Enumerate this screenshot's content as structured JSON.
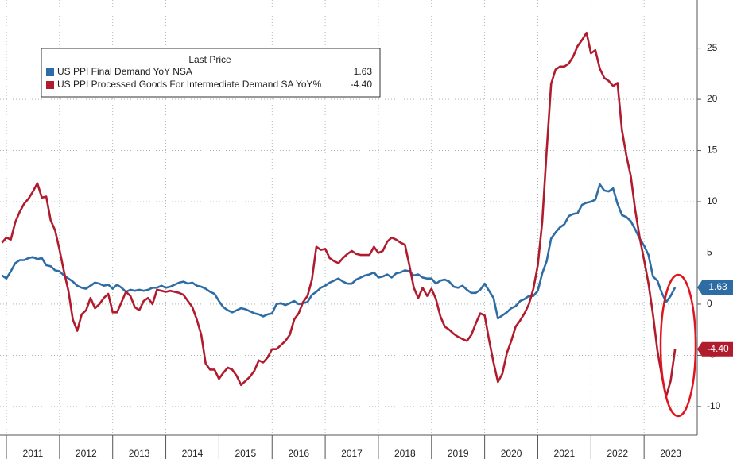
{
  "chart_data": {
    "type": "line",
    "legend_title": "Last Price",
    "xlim": [
      2010.88,
      2024.0
    ],
    "xticks": [
      2011,
      2012,
      2013,
      2014,
      2015,
      2016,
      2017,
      2018,
      2019,
      2020,
      2021,
      2022,
      2023
    ],
    "ylim": [
      -12.8,
      29.7
    ],
    "yticks": [
      -10,
      -5,
      0,
      5,
      10,
      15,
      20,
      25
    ],
    "grid": true,
    "x": [
      2010.917,
      2011.0,
      2011.083,
      2011.167,
      2011.25,
      2011.333,
      2011.417,
      2011.5,
      2011.583,
      2011.667,
      2011.75,
      2011.833,
      2011.917,
      2012.0,
      2012.083,
      2012.167,
      2012.25,
      2012.333,
      2012.417,
      2012.5,
      2012.583,
      2012.667,
      2012.75,
      2012.833,
      2012.917,
      2013.0,
      2013.083,
      2013.167,
      2013.25,
      2013.333,
      2013.417,
      2013.5,
      2013.583,
      2013.667,
      2013.75,
      2013.833,
      2013.917,
      2014.0,
      2014.083,
      2014.167,
      2014.25,
      2014.333,
      2014.417,
      2014.5,
      2014.583,
      2014.667,
      2014.75,
      2014.833,
      2014.917,
      2015.0,
      2015.083,
      2015.167,
      2015.25,
      2015.333,
      2015.417,
      2015.5,
      2015.583,
      2015.667,
      2015.75,
      2015.833,
      2015.917,
      2016.0,
      2016.083,
      2016.167,
      2016.25,
      2016.333,
      2016.417,
      2016.5,
      2016.583,
      2016.667,
      2016.75,
      2016.833,
      2016.917,
      2017.0,
      2017.083,
      2017.167,
      2017.25,
      2017.333,
      2017.417,
      2017.5,
      2017.583,
      2017.667,
      2017.75,
      2017.833,
      2017.917,
      2018.0,
      2018.083,
      2018.167,
      2018.25,
      2018.333,
      2018.417,
      2018.5,
      2018.583,
      2018.667,
      2018.75,
      2018.833,
      2018.917,
      2019.0,
      2019.083,
      2019.167,
      2019.25,
      2019.333,
      2019.417,
      2019.5,
      2019.583,
      2019.667,
      2019.75,
      2019.833,
      2019.917,
      2020.0,
      2020.083,
      2020.167,
      2020.25,
      2020.333,
      2020.417,
      2020.5,
      2020.583,
      2020.667,
      2020.75,
      2020.833,
      2020.917,
      2021.0,
      2021.083,
      2021.167,
      2021.25,
      2021.333,
      2021.417,
      2021.5,
      2021.583,
      2021.667,
      2021.75,
      2021.833,
      2021.917,
      2022.0,
      2022.083,
      2022.167,
      2022.25,
      2022.333,
      2022.417,
      2022.5,
      2022.583,
      2022.667,
      2022.75,
      2022.833,
      2022.917,
      2023.0,
      2023.083,
      2023.167,
      2023.25,
      2023.333,
      2023.417,
      2023.5,
      2023.583
    ],
    "series": [
      {
        "name": "US PPI Final Demand YoY NSA",
        "color": "#2e6ca4",
        "last_label": "1.63",
        "values": [
          2.8,
          2.5,
          3.2,
          4.0,
          4.3,
          4.3,
          4.5,
          4.6,
          4.4,
          4.5,
          3.8,
          3.7,
          3.3,
          3.2,
          2.8,
          2.5,
          2.2,
          1.8,
          1.6,
          1.5,
          1.8,
          2.1,
          2.0,
          1.8,
          1.9,
          1.5,
          1.9,
          1.6,
          1.2,
          1.4,
          1.3,
          1.4,
          1.3,
          1.4,
          1.6,
          1.6,
          1.8,
          1.6,
          1.7,
          1.9,
          2.1,
          2.2,
          2.0,
          2.1,
          1.8,
          1.7,
          1.5,
          1.2,
          1.0,
          0.3,
          -0.3,
          -0.6,
          -0.8,
          -0.6,
          -0.4,
          -0.5,
          -0.7,
          -0.9,
          -1.0,
          -1.2,
          -1.0,
          -0.9,
          0.0,
          0.1,
          -0.1,
          0.1,
          0.3,
          0.0,
          0.1,
          0.2,
          0.9,
          1.2,
          1.6,
          1.8,
          2.1,
          2.3,
          2.5,
          2.2,
          2.0,
          2.0,
          2.4,
          2.6,
          2.8,
          2.9,
          3.1,
          2.6,
          2.7,
          2.9,
          2.6,
          3.0,
          3.1,
          3.3,
          3.2,
          2.8,
          2.9,
          2.6,
          2.5,
          2.5,
          2.0,
          2.3,
          2.4,
          2.2,
          1.7,
          1.6,
          1.8,
          1.4,
          1.1,
          1.1,
          1.4,
          2.0,
          1.3,
          0.6,
          -1.4,
          -1.1,
          -0.8,
          -0.4,
          -0.2,
          0.3,
          0.5,
          0.8,
          0.8,
          1.3,
          3.0,
          4.2,
          6.4,
          7.0,
          7.5,
          7.8,
          8.6,
          8.8,
          8.9,
          9.7,
          9.9,
          10.0,
          10.2,
          11.7,
          11.1,
          11.0,
          11.3,
          9.8,
          8.7,
          8.5,
          8.1,
          7.3,
          6.4,
          5.7,
          4.8,
          2.7,
          2.3,
          1.1,
          0.2,
          0.8,
          1.63
        ]
      },
      {
        "name": "US PPI Processed Goods For Intermediate Demand SA YoY%",
        "color": "#b01c2e",
        "last_label": "-4.40",
        "values": [
          6.0,
          6.5,
          6.3,
          8.0,
          9.0,
          9.8,
          10.3,
          11.0,
          11.8,
          10.4,
          10.5,
          8.2,
          7.2,
          5.3,
          3.2,
          1.3,
          -1.5,
          -2.6,
          -1.0,
          -0.6,
          0.6,
          -0.4,
          0.0,
          0.6,
          1.0,
          -0.8,
          -0.8,
          0.2,
          1.2,
          0.8,
          -0.3,
          -0.6,
          0.3,
          0.6,
          0.0,
          1.4,
          1.3,
          1.2,
          1.3,
          1.2,
          1.1,
          0.9,
          0.3,
          -0.3,
          -1.5,
          -3.0,
          -5.8,
          -6.4,
          -6.4,
          -7.3,
          -6.7,
          -6.2,
          -6.4,
          -7.0,
          -7.9,
          -7.5,
          -7.1,
          -6.5,
          -5.5,
          -5.7,
          -5.2,
          -4.4,
          -4.4,
          -4.0,
          -3.6,
          -3.0,
          -1.5,
          -0.9,
          0.2,
          0.8,
          2.4,
          5.6,
          5.3,
          5.4,
          4.5,
          4.2,
          4.0,
          4.5,
          4.9,
          5.2,
          4.9,
          4.8,
          4.8,
          4.8,
          5.6,
          5.0,
          5.2,
          6.1,
          6.5,
          6.3,
          6.0,
          5.8,
          3.8,
          1.6,
          0.6,
          1.6,
          0.8,
          1.5,
          0.5,
          -1.2,
          -2.2,
          -2.5,
          -2.9,
          -3.2,
          -3.4,
          -3.6,
          -3.0,
          -1.9,
          -0.9,
          -1.1,
          -3.5,
          -5.7,
          -7.6,
          -6.8,
          -4.8,
          -3.6,
          -2.2,
          -1.6,
          -0.9,
          0.0,
          1.5,
          3.8,
          8.0,
          15.0,
          21.5,
          22.9,
          23.2,
          23.2,
          23.5,
          24.2,
          25.2,
          25.8,
          26.5,
          24.5,
          24.8,
          23.0,
          22.1,
          21.8,
          21.3,
          21.6,
          17.0,
          14.5,
          12.5,
          9.2,
          6.5,
          4.3,
          2.0,
          -1.0,
          -4.5,
          -7.0,
          -9.0,
          -7.5,
          -4.4
        ]
      }
    ]
  }
}
